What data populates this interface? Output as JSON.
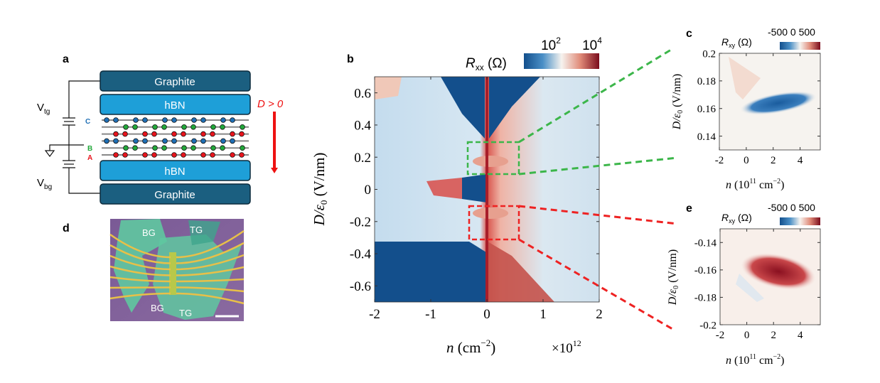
{
  "panels": {
    "a": {
      "label": "a",
      "layers": [
        "Graphite",
        "hBN",
        "hBN",
        "Graphite"
      ],
      "voltages": {
        "top": "V",
        "top_sub": "tg",
        "bottom": "V",
        "bottom_sub": "bg"
      },
      "sites": [
        "C",
        "B",
        "A"
      ],
      "field": "D > 0"
    },
    "d": {
      "label": "d",
      "gates": [
        "BG",
        "TG",
        "BG",
        "TG"
      ]
    },
    "b": {
      "label": "b"
    },
    "c": {
      "label": "c"
    },
    "e": {
      "label": "e"
    }
  },
  "colors": {
    "graphite": "#1b5f80",
    "hbn": "#1e9fd8",
    "site_c": "#1f6fb5",
    "site_b": "#22a83a",
    "site_a": "#e8141c",
    "field_arrow": "#ee1111",
    "zoom_box_upper": "#3cb64a",
    "zoom_box_lower": "#ee2222",
    "cmap_low": "#134f8c",
    "cmap_mid": "#f6f3ef",
    "cmap_high": "#7a0c1c"
  },
  "chart_data": [
    {
      "panel": "b",
      "type": "heatmap",
      "colorbar": {
        "label": "R",
        "label_sub": "xx",
        "unit": "(Ω)",
        "scale": "log",
        "ticks": [
          "10^2",
          "10^4"
        ],
        "tick_base": "10",
        "tick_exps": [
          "2",
          "4"
        ]
      },
      "xlabel": "n",
      "xlabel_unit": "(cm",
      "xlabel_exp": "−2",
      "xlabel_close": ")",
      "x_multiplier": "×10",
      "x_multiplier_exp": "12",
      "ylabel": "D/ε",
      "ylabel_sub": "0",
      "ylabel_unit": "(V/nm)",
      "xlim": [
        -2,
        2
      ],
      "ylim": [
        -0.7,
        0.7
      ],
      "xticks": [
        "-2",
        "-1",
        "0",
        "1",
        "2"
      ],
      "yticks": [
        "0.6",
        "0.4",
        "0.2",
        "0",
        "-0.2",
        "-0.4",
        "-0.6"
      ],
      "highlight_boxes": [
        {
          "color": "green",
          "x": [
            -0.34,
            0.57
          ],
          "y": [
            0.1,
            0.3
          ]
        },
        {
          "color": "red",
          "x": [
            -0.32,
            0.57
          ],
          "y": [
            -0.3,
            -0.1
          ]
        }
      ]
    },
    {
      "panel": "c",
      "type": "heatmap",
      "colorbar": {
        "label": "R",
        "label_sub": "xy",
        "unit": "(Ω)",
        "ticks": [
          "-500",
          "0",
          "500"
        ]
      },
      "xlabel": "n",
      "xlabel_unit": "(10",
      "xlabel_exp1": "11",
      "xlabel_unit2": " cm",
      "xlabel_exp2": "−2",
      "xlabel_close": ")",
      "ylabel": "D/ε",
      "ylabel_sub": "0",
      "ylabel_unit": "(V/nm)",
      "xlim": [
        -2,
        5.5
      ],
      "ylim": [
        0.13,
        0.2
      ],
      "xticks": [
        "-2",
        "0",
        "2",
        "4"
      ],
      "yticks": [
        "0.2",
        "0.18",
        "0.16",
        "0.14"
      ],
      "feature": "negative Rxy pocket near D≈0.155 V/nm, n 0–5×10^11 cm^-2"
    },
    {
      "panel": "e",
      "type": "heatmap",
      "colorbar": {
        "label": "R",
        "label_sub": "xy",
        "unit": "(Ω)",
        "ticks": [
          "-500",
          "0",
          "500"
        ]
      },
      "xlabel": "n",
      "xlabel_unit": "(10",
      "xlabel_exp1": "11",
      "xlabel_unit2": " cm",
      "xlabel_exp2": "−2",
      "xlabel_close": ")",
      "ylabel": "D/ε",
      "ylabel_sub": "0",
      "ylabel_unit": "(V/nm)",
      "xlim": [
        -2,
        5.5
      ],
      "ylim": [
        -0.2,
        -0.13
      ],
      "xticks": [
        "-2",
        "0",
        "2",
        "4"
      ],
      "yticks": [
        "-0.14",
        "-0.16",
        "-0.18",
        "-0.2"
      ],
      "feature": "positive Rxy pocket near D≈-0.155 V/nm, n 0–5×10^11 cm^-2"
    }
  ]
}
